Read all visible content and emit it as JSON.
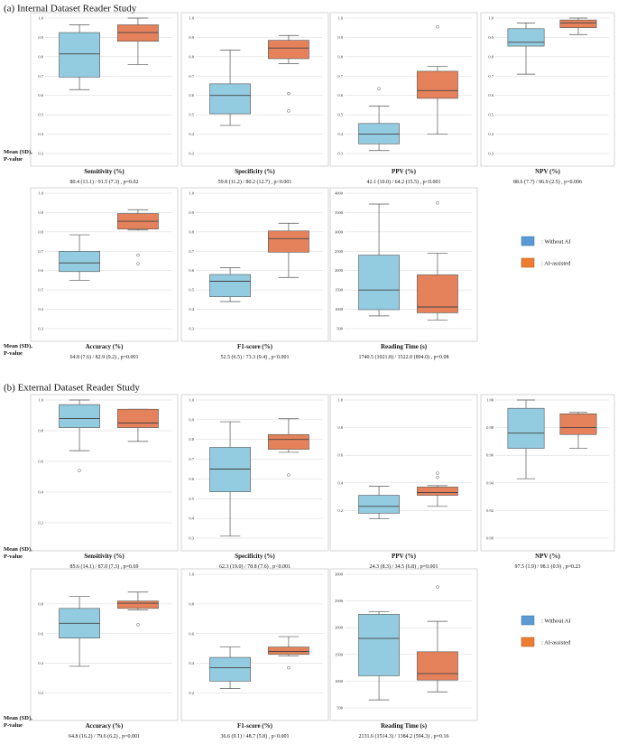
{
  "colors": {
    "without_ai": "#93cbe0",
    "ai_assisted": "#e5825c",
    "box_edge": "#555555",
    "grid": "#d6d6d6",
    "frame": "#bbbbbb",
    "legend_without": "#5b9bd5",
    "legend_ai": "#ed7d31"
  },
  "legend": {
    "without_ai": ": Without AI",
    "ai_assisted": ": AI-assisted"
  },
  "row_label": {
    "line1": "Mean (SD),",
    "line2": "P-value"
  },
  "chart_data": [
    {
      "section": "(a) Internal Dataset Reader Study",
      "type": "box",
      "panels": [
        {
          "title": "Sensitivity (%)",
          "stats": "80.4 (13.1) / 91.5 (7.3) , p=0.02",
          "ylim": [
            0.3,
            1.0
          ],
          "ticks": [
            "0.3",
            "0.4",
            "0.5",
            "0.6",
            "0.7",
            "0.8",
            "0.9",
            "1.0"
          ],
          "boxes": [
            {
              "group": "Without AI",
              "whisker_low": 0.63,
              "q1": 0.695,
              "median": 0.815,
              "q3": 0.925,
              "whisker_high": 0.965,
              "outliers": []
            },
            {
              "group": "AI-assisted",
              "whisker_low": 0.76,
              "q1": 0.88,
              "median": 0.925,
              "q3": 0.965,
              "whisker_high": 1.0,
              "outliers": []
            }
          ]
        },
        {
          "title": "Specificity (%)",
          "stats": "59.8 (11.2) / 80.2 (12.7) , p<0.001",
          "ylim": [
            0.3,
            1.0
          ],
          "ticks": [
            "0.3",
            "0.4",
            "0.5",
            "0.6",
            "0.7",
            "0.8",
            "0.9",
            "1.0"
          ],
          "boxes": [
            {
              "group": "Without AI",
              "whisker_low": 0.445,
              "q1": 0.505,
              "median": 0.6,
              "q3": 0.66,
              "whisker_high": 0.835,
              "outliers": []
            },
            {
              "group": "AI-assisted",
              "whisker_low": 0.765,
              "q1": 0.79,
              "median": 0.845,
              "q3": 0.885,
              "whisker_high": 0.91,
              "outliers": [
                0.61,
                0.52
              ]
            }
          ]
        },
        {
          "title": "PPV (%)",
          "stats": "42.1 (10.0) / 64.2 (15.5) , p<0.001",
          "ylim": [
            0.3,
            1.0
          ],
          "ticks": [
            "0.3",
            "0.4",
            "0.5",
            "0.6",
            "0.7",
            "0.8",
            "0.9",
            "1.0"
          ],
          "boxes": [
            {
              "group": "Without AI",
              "whisker_low": 0.315,
              "q1": 0.35,
              "median": 0.4,
              "q3": 0.455,
              "whisker_high": 0.545,
              "outliers": [
                0.635
              ]
            },
            {
              "group": "AI-assisted",
              "whisker_low": 0.4,
              "q1": 0.585,
              "median": 0.625,
              "q3": 0.725,
              "whisker_high": 0.75,
              "outliers": [
                0.955
              ]
            }
          ]
        },
        {
          "title": "NPV (%)",
          "stats": "88.6 (7.7) / 96.9 (2.5) , p=0.006",
          "ylim": [
            0.3,
            1.0
          ],
          "ticks": [
            "0.3",
            "0.4",
            "0.5",
            "0.6",
            "0.7",
            "0.8",
            "0.9",
            "1.0"
          ],
          "boxes": [
            {
              "group": "Without AI",
              "whisker_low": 0.71,
              "q1": 0.855,
              "median": 0.875,
              "q3": 0.945,
              "whisker_high": 0.975,
              "outliers": []
            },
            {
              "group": "AI-assisted",
              "whisker_low": 0.915,
              "q1": 0.95,
              "median": 0.975,
              "q3": 0.99,
              "whisker_high": 1.0,
              "outliers": []
            }
          ]
        },
        {
          "title": "Accuracy (%)",
          "stats": "64.8 (7.6) / 82.9 (9.2) , p=0.001",
          "ylim": [
            0.3,
            1.0
          ],
          "ticks": [
            "0.3",
            "0.4",
            "0.5",
            "0.6",
            "0.7",
            "0.8",
            "0.9",
            "1.0"
          ],
          "boxes": [
            {
              "group": "Without AI",
              "whisker_low": 0.55,
              "q1": 0.595,
              "median": 0.64,
              "q3": 0.7,
              "whisker_high": 0.785,
              "outliers": []
            },
            {
              "group": "AI-assisted",
              "whisker_low": 0.81,
              "q1": 0.815,
              "median": 0.855,
              "q3": 0.895,
              "whisker_high": 0.915,
              "outliers": [
                0.68,
                0.635
              ]
            }
          ]
        },
        {
          "title": "F1-score (%)",
          "stats": "52.5 (6.5) / 73.3 (9.4) , p<0.001",
          "ylim": [
            0.3,
            1.0
          ],
          "ticks": [
            "0.3",
            "0.4",
            "0.5",
            "0.6",
            "0.7",
            "0.8",
            "0.9",
            "1.0"
          ],
          "boxes": [
            {
              "group": "Without AI",
              "whisker_low": 0.44,
              "q1": 0.465,
              "median": 0.545,
              "q3": 0.58,
              "whisker_high": 0.615,
              "outliers": []
            },
            {
              "group": "AI-assisted",
              "whisker_low": 0.565,
              "q1": 0.695,
              "median": 0.765,
              "q3": 0.805,
              "whisker_high": 0.845,
              "outliers": []
            }
          ]
        },
        {
          "title": "Reading Time (s)",
          "stats": "1740.5 (1021.8) / 1522.0 (894.0) , p=0.08",
          "ylim": [
            500,
            4000
          ],
          "ticks": [
            "500",
            "1000",
            "1500",
            "2000",
            "2500",
            "3000",
            "3500",
            "4000"
          ],
          "boxes": [
            {
              "group": "Without AI",
              "whisker_low": 830,
              "q1": 990,
              "median": 1500,
              "q3": 2400,
              "whisker_high": 3720,
              "outliers": []
            },
            {
              "group": "AI-assisted",
              "whisker_low": 720,
              "q1": 910,
              "median": 1060,
              "q3": 1890,
              "whisker_high": 2450,
              "outliers": [
                3750
              ]
            }
          ]
        }
      ]
    },
    {
      "section": "(b) External Dataset Reader Study",
      "type": "box",
      "panels": [
        {
          "title": "Sensitivity (%)",
          "stats": "85.6 (14.1) / 87.0 (7.3) , p=0.69",
          "ylim": [
            0.1,
            1.0
          ],
          "ticks": [
            "0.2",
            "0.4",
            "0.6",
            "0.8",
            "1.0"
          ],
          "boxes": [
            {
              "group": "Without AI",
              "whisker_low": 0.67,
              "q1": 0.82,
              "median": 0.88,
              "q3": 0.97,
              "whisker_high": 1.0,
              "outliers": [
                0.54
              ]
            },
            {
              "group": "AI-assisted",
              "whisker_low": 0.73,
              "q1": 0.82,
              "median": 0.85,
              "q3": 0.94,
              "whisker_high": 0.94,
              "outliers": []
            }
          ]
        },
        {
          "title": "Specificity (%)",
          "stats": "62.3 (19.0) / 78.8 (7.6) , p<0.001",
          "ylim": [
            0.3,
            1.0
          ],
          "ticks": [
            "0.3",
            "0.4",
            "0.5",
            "0.6",
            "0.7",
            "0.8",
            "0.9",
            "1.0"
          ],
          "boxes": [
            {
              "group": "Without AI",
              "whisker_low": 0.31,
              "q1": 0.535,
              "median": 0.65,
              "q3": 0.76,
              "whisker_high": 0.89,
              "outliers": []
            },
            {
              "group": "AI-assisted",
              "whisker_low": 0.735,
              "q1": 0.75,
              "median": 0.8,
              "q3": 0.825,
              "whisker_high": 0.905,
              "outliers": [
                0.62
              ]
            }
          ]
        },
        {
          "title": "PPV (%)",
          "stats": "24.3 (8.3) / 34.5 (6.8) , p=0.001",
          "ylim": [
            0.0,
            1.0
          ],
          "ticks": [
            "0.2",
            "0.4",
            "0.6",
            "0.8",
            "1.0"
          ],
          "boxes": [
            {
              "group": "Without AI",
              "whisker_low": 0.14,
              "q1": 0.18,
              "median": 0.23,
              "q3": 0.31,
              "whisker_high": 0.375,
              "outliers": []
            },
            {
              "group": "AI-assisted",
              "whisker_low": 0.23,
              "q1": 0.31,
              "median": 0.33,
              "q3": 0.37,
              "whisker_high": 0.38,
              "outliers": [
                0.44,
                0.47
              ]
            }
          ]
        },
        {
          "title": "NPV (%)",
          "stats": "97.5 (1.9) / 98.1 (0.9) , p=0.23",
          "ylim": [
            0.9,
            1.0
          ],
          "ticks": [
            "0.90",
            "0.92",
            "0.94",
            "0.96",
            "0.98",
            "1.00"
          ],
          "boxes": [
            {
              "group": "Without AI",
              "whisker_low": 0.943,
              "q1": 0.965,
              "median": 0.976,
              "q3": 0.994,
              "whisker_high": 1.0,
              "outliers": []
            },
            {
              "group": "AI-assisted",
              "whisker_low": 0.965,
              "q1": 0.975,
              "median": 0.98,
              "q3": 0.99,
              "whisker_high": 0.991,
              "outliers": []
            }
          ]
        },
        {
          "title": "Accuracy (%)",
          "stats": "64.8 (16.2) / 79.6 (6.2) , p=0.001",
          "ylim": [
            0.1,
            1.0
          ],
          "ticks": [
            "0.2",
            "0.4",
            "0.6",
            "0.8"
          ],
          "boxes": [
            {
              "group": "Without AI",
              "whisker_low": 0.38,
              "q1": 0.57,
              "median": 0.67,
              "q3": 0.77,
              "whisker_high": 0.85,
              "outliers": []
            },
            {
              "group": "AI-assisted",
              "whisker_low": 0.76,
              "q1": 0.77,
              "median": 0.805,
              "q3": 0.82,
              "whisker_high": 0.88,
              "outliers": [
                0.66
              ]
            }
          ]
        },
        {
          "title": "F1-score (%)",
          "stats": "36.6 (9.1) / 48.7 (5.8) , p<0.001",
          "ylim": [
            0.1,
            1.0
          ],
          "ticks": [
            "0.2",
            "0.4",
            "0.6",
            "0.8",
            "1.0"
          ],
          "boxes": [
            {
              "group": "Without AI",
              "whisker_low": 0.23,
              "q1": 0.28,
              "median": 0.37,
              "q3": 0.44,
              "whisker_high": 0.51,
              "outliers": []
            },
            {
              "group": "AI-assisted",
              "whisker_low": 0.45,
              "q1": 0.46,
              "median": 0.48,
              "q3": 0.51,
              "whisker_high": 0.58,
              "outliers": [
                0.37
              ]
            }
          ]
        },
        {
          "title": "Reading Time (s)",
          "stats": "2131.6 (1514.3) / 1384.2 (594.3) , p=0.16",
          "ylim": [
            500,
            3000
          ],
          "ticks": [
            "500",
            "1000",
            "1500",
            "2000",
            "2500",
            "3000"
          ],
          "boxes": [
            {
              "group": "Without AI",
              "whisker_low": 650,
              "q1": 1100,
              "median": 1800,
              "q3": 2250,
              "whisker_high": 2300,
              "outliers": []
            },
            {
              "group": "AI-assisted",
              "whisker_low": 800,
              "q1": 1020,
              "median": 1140,
              "q3": 1550,
              "whisker_high": 2120,
              "outliers": [
                2760
              ]
            }
          ]
        }
      ]
    }
  ]
}
